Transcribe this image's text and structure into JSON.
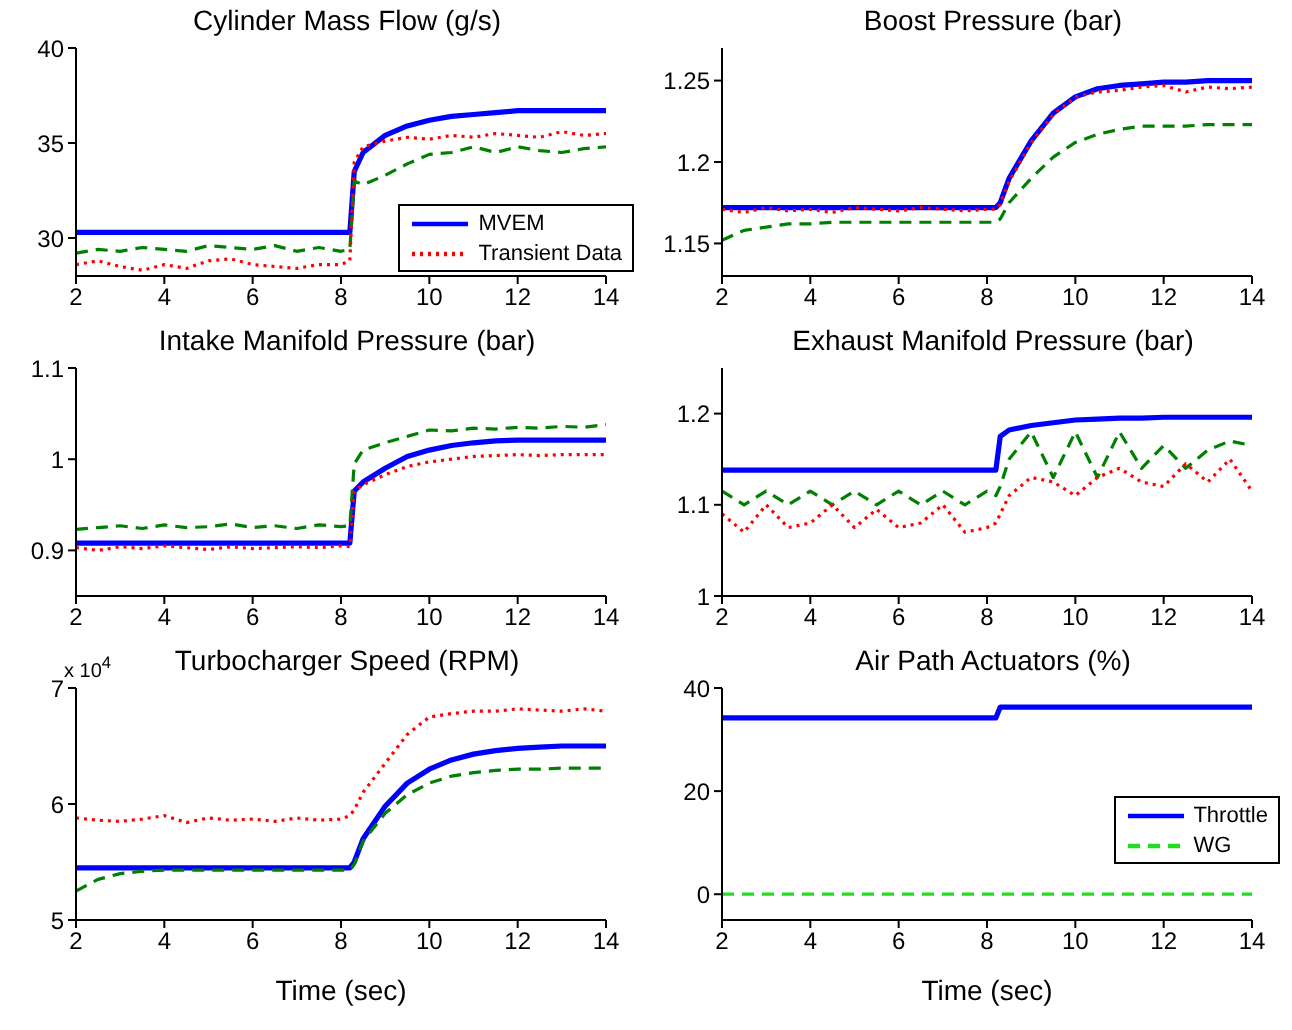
{
  "chart_data": [
    {
      "type": "line",
      "title": "Cylinder Mass Flow (g/s)",
      "x": [
        2,
        2.5,
        3,
        3.5,
        4,
        4.5,
        5,
        5.5,
        6,
        6.5,
        7,
        7.5,
        8,
        8.2,
        8.3,
        8.5,
        9,
        9.5,
        10,
        10.5,
        11,
        11.5,
        12,
        12.5,
        13,
        13.5,
        14
      ],
      "xlim": [
        2,
        14
      ],
      "xticks": [
        2,
        4,
        6,
        8,
        10,
        12,
        14
      ],
      "ylim": [
        28,
        40
      ],
      "yticks": [
        30,
        35,
        40
      ],
      "marker": "none",
      "legend": "bottom right",
      "series": [
        {
          "name": "MVEM",
          "color": "#0000ff",
          "line_style": "solid",
          "values": [
            30.3,
            30.3,
            30.3,
            30.3,
            30.3,
            30.3,
            30.3,
            30.3,
            30.3,
            30.3,
            30.3,
            30.3,
            30.3,
            30.3,
            33.5,
            34.5,
            35.4,
            35.9,
            36.2,
            36.4,
            36.5,
            36.6,
            36.7,
            36.7,
            36.7,
            36.7,
            36.7
          ]
        },
        {
          "color": "#008000",
          "line_style": "dashed",
          "values": [
            29.2,
            29.4,
            29.3,
            29.5,
            29.4,
            29.3,
            29.6,
            29.5,
            29.4,
            29.6,
            29.3,
            29.5,
            29.3,
            29.4,
            33,
            32.8,
            33.3,
            33.9,
            34.4,
            34.5,
            34.8,
            34.5,
            34.8,
            34.6,
            34.5,
            34.7,
            34.8
          ]
        },
        {
          "name": "Transient Data",
          "color": "#ff0000",
          "line_style": "dotted",
          "values": [
            28.6,
            28.8,
            28.5,
            28.3,
            28.6,
            28.4,
            28.8,
            28.9,
            28.6,
            28.5,
            28.4,
            28.6,
            28.6,
            28.8,
            34,
            34.8,
            35.1,
            35.3,
            35.2,
            35.4,
            35.3,
            35.5,
            35.4,
            35.3,
            35.6,
            35.4,
            35.5
          ]
        }
      ]
    },
    {
      "type": "line",
      "title": "Boost Pressure (bar)",
      "x": [
        2,
        2.5,
        3,
        3.5,
        4,
        4.5,
        5,
        5.5,
        6,
        6.5,
        7,
        7.5,
        8,
        8.2,
        8.3,
        8.5,
        9,
        9.5,
        10,
        10.5,
        11,
        11.5,
        12,
        12.5,
        13,
        13.5,
        14
      ],
      "xlim": [
        2,
        14
      ],
      "xticks": [
        2,
        4,
        6,
        8,
        10,
        12,
        14
      ],
      "ylim": [
        1.13,
        1.27
      ],
      "yticks": [
        1.15,
        1.2,
        1.25
      ],
      "marker": "none",
      "series": [
        {
          "color": "#0000ff",
          "line_style": "solid",
          "values": [
            1.172,
            1.172,
            1.172,
            1.172,
            1.172,
            1.172,
            1.172,
            1.172,
            1.172,
            1.172,
            1.172,
            1.172,
            1.172,
            1.172,
            1.175,
            1.19,
            1.213,
            1.23,
            1.24,
            1.245,
            1.247,
            1.248,
            1.249,
            1.249,
            1.25,
            1.25,
            1.25
          ]
        },
        {
          "color": "#008000",
          "line_style": "dashed",
          "values": [
            1.152,
            1.158,
            1.16,
            1.162,
            1.162,
            1.163,
            1.163,
            1.163,
            1.163,
            1.163,
            1.163,
            1.163,
            1.163,
            1.163,
            1.165,
            1.175,
            1.19,
            1.203,
            1.212,
            1.217,
            1.22,
            1.222,
            1.222,
            1.222,
            1.223,
            1.223,
            1.223
          ]
        },
        {
          "color": "#ff0000",
          "line_style": "dotted",
          "values": [
            1.171,
            1.169,
            1.172,
            1.17,
            1.171,
            1.169,
            1.172,
            1.171,
            1.17,
            1.172,
            1.171,
            1.17,
            1.171,
            1.171,
            1.174,
            1.188,
            1.212,
            1.229,
            1.24,
            1.243,
            1.244,
            1.246,
            1.247,
            1.243,
            1.246,
            1.245,
            1.246
          ]
        }
      ]
    },
    {
      "type": "line",
      "title": "Intake Manifold Pressure (bar)",
      "x": [
        2,
        2.5,
        3,
        3.5,
        4,
        4.5,
        5,
        5.5,
        6,
        6.5,
        7,
        7.5,
        8,
        8.2,
        8.3,
        8.5,
        9,
        9.5,
        10,
        10.5,
        11,
        11.5,
        12,
        12.5,
        13,
        13.5,
        14
      ],
      "xlim": [
        2,
        14
      ],
      "xticks": [
        2,
        4,
        6,
        8,
        10,
        12,
        14
      ],
      "ylim": [
        0.85,
        1.1
      ],
      "yticks": [
        0.9,
        1,
        1.1
      ],
      "marker": "none",
      "series": [
        {
          "color": "#0000ff",
          "line_style": "solid",
          "values": [
            0.908,
            0.908,
            0.908,
            0.908,
            0.908,
            0.908,
            0.908,
            0.908,
            0.908,
            0.908,
            0.908,
            0.908,
            0.908,
            0.908,
            0.965,
            0.975,
            0.99,
            1.003,
            1.01,
            1.015,
            1.018,
            1.02,
            1.021,
            1.021,
            1.021,
            1.021,
            1.021
          ]
        },
        {
          "color": "#008000",
          "line_style": "dashed",
          "values": [
            0.923,
            0.925,
            0.927,
            0.924,
            0.928,
            0.925,
            0.926,
            0.929,
            0.925,
            0.927,
            0.924,
            0.928,
            0.926,
            0.927,
            0.995,
            1.01,
            1.018,
            1.025,
            1.032,
            1.031,
            1.034,
            1.033,
            1.035,
            1.034,
            1.036,
            1.035,
            1.038
          ]
        },
        {
          "color": "#ff0000",
          "line_style": "dotted",
          "values": [
            0.903,
            0.9,
            0.904,
            0.902,
            0.905,
            0.903,
            0.901,
            0.904,
            0.902,
            0.903,
            0.904,
            0.903,
            0.905,
            0.904,
            0.965,
            0.972,
            0.983,
            0.992,
            0.997,
            1,
            1.003,
            1.004,
            1.005,
            1.004,
            1.005,
            1.005,
            1.005
          ]
        }
      ]
    },
    {
      "type": "line",
      "title": "Exhaust Manifold Pressure (bar)",
      "x": [
        2,
        2.5,
        3,
        3.5,
        4,
        4.5,
        5,
        5.5,
        6,
        6.5,
        7,
        7.5,
        8,
        8.2,
        8.3,
        8.5,
        9,
        9.5,
        10,
        10.5,
        11,
        11.5,
        12,
        12.5,
        13,
        13.5,
        14
      ],
      "xlim": [
        2,
        14
      ],
      "xticks": [
        2,
        4,
        6,
        8,
        10,
        12,
        14
      ],
      "ylim": [
        1,
        1.25
      ],
      "yticks": [
        1,
        1.1,
        1.2
      ],
      "marker": "none",
      "series": [
        {
          "color": "#0000ff",
          "line_style": "solid",
          "values": [
            1.138,
            1.138,
            1.138,
            1.138,
            1.138,
            1.138,
            1.138,
            1.138,
            1.138,
            1.138,
            1.138,
            1.138,
            1.138,
            1.138,
            1.175,
            1.182,
            1.187,
            1.19,
            1.193,
            1.194,
            1.195,
            1.195,
            1.196,
            1.196,
            1.196,
            1.196,
            1.196
          ]
        },
        {
          "color": "#008000",
          "line_style": "dashed",
          "values": [
            1.115,
            1.1,
            1.115,
            1.1,
            1.115,
            1.1,
            1.115,
            1.1,
            1.115,
            1.1,
            1.115,
            1.1,
            1.115,
            1.11,
            1.12,
            1.15,
            1.18,
            1.13,
            1.18,
            1.13,
            1.18,
            1.14,
            1.165,
            1.14,
            1.16,
            1.17,
            1.165
          ]
        },
        {
          "color": "#ff0000",
          "line_style": "dotted",
          "values": [
            1.09,
            1.07,
            1.1,
            1.075,
            1.08,
            1.1,
            1.075,
            1.095,
            1.075,
            1.08,
            1.1,
            1.07,
            1.075,
            1.08,
            1.09,
            1.11,
            1.13,
            1.125,
            1.11,
            1.13,
            1.14,
            1.125,
            1.12,
            1.145,
            1.125,
            1.15,
            1.115
          ]
        }
      ]
    },
    {
      "type": "line",
      "title": "Turbocharger Speed (RPM)",
      "xlabel": "Time (sec)",
      "annotations": [
        "x 10$^{4}$"
      ],
      "x": [
        2,
        2.5,
        3,
        3.5,
        4,
        4.5,
        5,
        5.5,
        6,
        6.5,
        7,
        7.5,
        8,
        8.2,
        8.3,
        8.5,
        9,
        9.5,
        10,
        10.5,
        11,
        11.5,
        12,
        12.5,
        13,
        13.5,
        14
      ],
      "xlim": [
        2,
        14
      ],
      "xticks": [
        2,
        4,
        6,
        8,
        10,
        12,
        14
      ],
      "ylim": [
        5,
        7
      ],
      "yticks": [
        5,
        6,
        7
      ],
      "marker": "none",
      "series": [
        {
          "color": "#0000ff",
          "line_style": "solid",
          "values": [
            5.45,
            5.45,
            5.45,
            5.45,
            5.45,
            5.45,
            5.45,
            5.45,
            5.45,
            5.45,
            5.45,
            5.45,
            5.45,
            5.45,
            5.5,
            5.7,
            5.98,
            6.18,
            6.3,
            6.38,
            6.43,
            6.46,
            6.48,
            6.49,
            6.5,
            6.5,
            6.5
          ]
        },
        {
          "color": "#008000",
          "line_style": "dashed",
          "values": [
            5.25,
            5.35,
            5.4,
            5.42,
            5.43,
            5.43,
            5.43,
            5.43,
            5.43,
            5.43,
            5.43,
            5.43,
            5.43,
            5.43,
            5.48,
            5.68,
            5.92,
            6.08,
            6.18,
            6.24,
            6.27,
            6.29,
            6.3,
            6.3,
            6.31,
            6.31,
            6.31
          ]
        },
        {
          "color": "#ff0000",
          "line_style": "dotted",
          "values": [
            5.88,
            5.86,
            5.85,
            5.87,
            5.9,
            5.84,
            5.88,
            5.86,
            5.87,
            5.85,
            5.88,
            5.86,
            5.87,
            5.9,
            5.95,
            6.1,
            6.35,
            6.6,
            6.75,
            6.78,
            6.8,
            6.8,
            6.82,
            6.81,
            6.8,
            6.82,
            6.8
          ]
        }
      ]
    },
    {
      "type": "line",
      "title": "Air Path Actuators (%)",
      "xlabel": "Time (sec)",
      "x": [
        2,
        8.2,
        8.3,
        14
      ],
      "xlim": [
        2,
        14
      ],
      "xticks": [
        2,
        4,
        6,
        8,
        10,
        12,
        14
      ],
      "ylim": [
        -5,
        40
      ],
      "yticks": [
        0,
        20,
        40
      ],
      "marker": "none",
      "legend": "right",
      "series": [
        {
          "name": "Throttle",
          "color": "#0000ff",
          "line_style": "solid",
          "values": [
            34.2,
            34.2,
            36.3,
            36.3
          ]
        },
        {
          "name": "WG",
          "color": "#22dd22",
          "line_style": "dashed",
          "values": [
            0,
            0,
            0,
            0
          ]
        }
      ]
    }
  ]
}
